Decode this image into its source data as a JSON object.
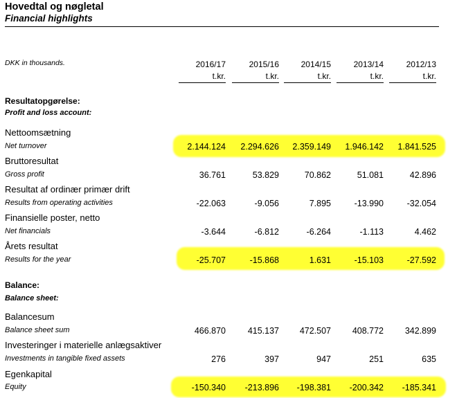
{
  "header": {
    "title_da": "Hovedtal og nøgletal",
    "title_en": "Financial highlights",
    "unit_label": "DKK in thousands.",
    "unit_suffix": "t.kr.",
    "years": [
      "2016/17",
      "2015/16",
      "2014/15",
      "2013/14",
      "2012/13"
    ]
  },
  "sections": [
    {
      "title_da": "Resultatopgørelse:",
      "title_en": "Profit and loss account:",
      "rows": [
        {
          "label_da": "Nettoomsætning",
          "label_en": "Net turnover",
          "highlighted": true,
          "values": [
            "2.144.124",
            "2.294.626",
            "2.359.149",
            "1.946.142",
            "1.841.525"
          ]
        },
        {
          "label_da": "Bruttoresultat",
          "label_en": "Gross profit",
          "highlighted": false,
          "values": [
            "36.761",
            "53.829",
            "70.862",
            "51.081",
            "42.896"
          ]
        },
        {
          "label_da": "Resultat af ordinær primær drift",
          "label_en": "Results from operating activities",
          "highlighted": false,
          "values": [
            "-22.063",
            "-9.056",
            "7.895",
            "-13.990",
            "-32.054"
          ]
        },
        {
          "label_da": "Finansielle poster, netto",
          "label_en": "Net financials",
          "highlighted": false,
          "values": [
            "-3.644",
            "-6.812",
            "-6.264",
            "-1.113",
            "4.462"
          ]
        },
        {
          "label_da": "Årets resultat",
          "label_en": "Results for the year",
          "highlighted": true,
          "values": [
            "-25.707",
            "-15.868",
            "1.631",
            "-15.103",
            "-27.592"
          ]
        }
      ]
    },
    {
      "title_da": "Balance:",
      "title_en": "Balance sheet:",
      "rows": [
        {
          "label_da": "Balancesum",
          "label_en": "Balance sheet sum",
          "highlighted": false,
          "values": [
            "466.870",
            "415.137",
            "472.507",
            "408.772",
            "342.899"
          ]
        },
        {
          "label_da": "Investeringer i materielle anlægsaktiver",
          "label_en": "Investments in tangible fixed assets",
          "highlighted": false,
          "values": [
            "276",
            "397",
            "947",
            "251",
            "635"
          ]
        },
        {
          "label_da": "Egenkapital",
          "label_en": "Equity",
          "highlighted": true,
          "values": [
            "-150.340",
            "-213.896",
            "-198.381",
            "-200.342",
            "-185.341"
          ]
        }
      ]
    }
  ],
  "colors": {
    "highlight": "#ffff33",
    "text": "#000000"
  }
}
